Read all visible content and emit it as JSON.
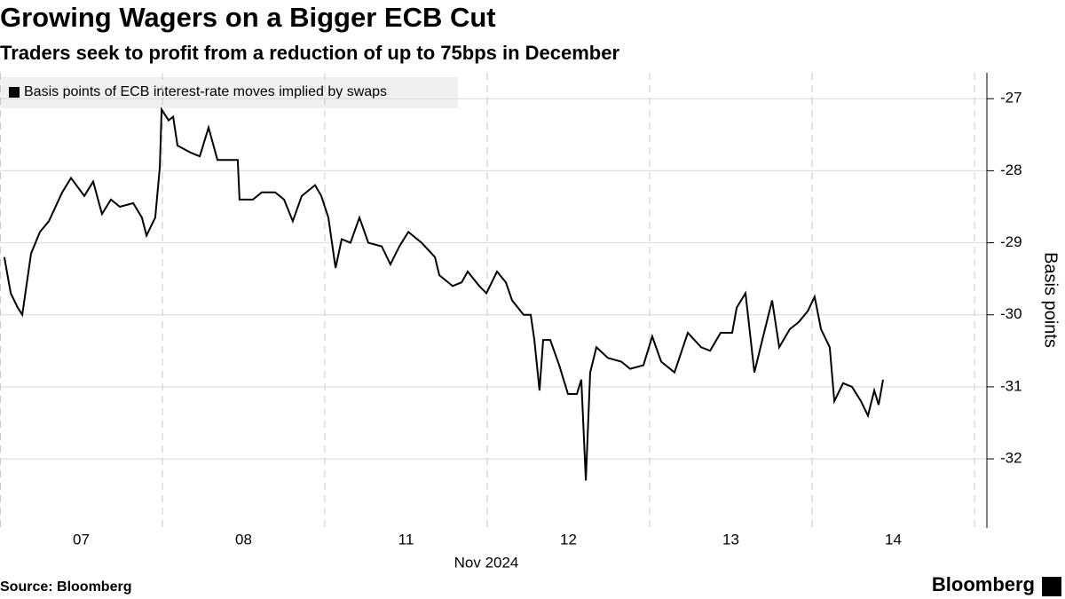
{
  "chart_data": {
    "type": "line",
    "title": "Growing Wagers on a Bigger ECB Cut",
    "subtitle": "Traders seek to profit from a reduction of up to 75bps in December",
    "x_label": "Nov 2024",
    "y_label": "Basis points",
    "source": "Source: Bloomberg",
    "brand": "Bloomberg",
    "xlim": [
      0,
      6.08
    ],
    "xticks": [
      {
        "value": 0.5,
        "label": "07"
      },
      {
        "value": 1.5,
        "label": "08"
      },
      {
        "value": 2.5,
        "label": "11"
      },
      {
        "value": 3.5,
        "label": "12"
      },
      {
        "value": 4.5,
        "label": "13"
      },
      {
        "value": 5.5,
        "label": "14"
      }
    ],
    "x_dividers": [
      0,
      1,
      2,
      3,
      4,
      5,
      6
    ],
    "ylim": [
      -32.96,
      -26.64
    ],
    "yticks": [
      -27,
      -28,
      -29,
      -30,
      -31,
      -32
    ],
    "grid": true,
    "series": [
      {
        "name": "Basis points of ECB interest-rate moves implied by swaps",
        "color": "#000000",
        "x": [
          0.027,
          0.066,
          0.109,
          0.137,
          0.191,
          0.246,
          0.301,
          0.383,
          0.437,
          0.519,
          0.574,
          0.628,
          0.683,
          0.738,
          0.82,
          0.874,
          0.902,
          0.956,
          0.984,
          0.995,
          1.038,
          1.066,
          1.093,
          1.175,
          1.23,
          1.284,
          1.339,
          1.421,
          1.464,
          1.475,
          1.557,
          1.612,
          1.694,
          1.749,
          1.803,
          1.858,
          1.94,
          1.978,
          2.022,
          2.066,
          2.104,
          2.158,
          2.213,
          2.268,
          2.35,
          2.404,
          2.459,
          2.514,
          2.596,
          2.678,
          2.705,
          2.787,
          2.842,
          2.88,
          2.951,
          2.995,
          3.06,
          3.115,
          3.153,
          3.224,
          3.268,
          3.29,
          3.322,
          3.344,
          3.388,
          3.443,
          3.497,
          3.552,
          3.579,
          3.607,
          3.634,
          3.672,
          3.743,
          3.825,
          3.88,
          3.962,
          4.016,
          4.071,
          4.153,
          4.235,
          4.317,
          4.372,
          4.437,
          4.508,
          4.536,
          4.59,
          4.645,
          4.699,
          4.754,
          4.798,
          4.863,
          4.918,
          4.973,
          5.016,
          5.055,
          5.109,
          5.137,
          5.191,
          5.246,
          5.301,
          5.344,
          5.383,
          5.41,
          5.437
        ],
        "values": [
          -29.2,
          -29.7,
          -29.9,
          -30.0,
          -29.15,
          -28.85,
          -28.7,
          -28.3,
          -28.1,
          -28.35,
          -28.15,
          -28.6,
          -28.4,
          -28.5,
          -28.45,
          -28.65,
          -28.9,
          -28.65,
          -27.95,
          -27.15,
          -27.3,
          -27.25,
          -27.65,
          -27.75,
          -27.8,
          -27.4,
          -27.85,
          -27.85,
          -27.85,
          -28.4,
          -28.4,
          -28.3,
          -28.3,
          -28.4,
          -28.7,
          -28.35,
          -28.2,
          -28.35,
          -28.65,
          -29.35,
          -28.95,
          -29.0,
          -28.65,
          -29.0,
          -29.05,
          -29.3,
          -29.05,
          -28.85,
          -29.0,
          -29.2,
          -29.45,
          -29.6,
          -29.55,
          -29.4,
          -29.6,
          -29.7,
          -29.4,
          -29.55,
          -29.8,
          -30.0,
          -30.0,
          -30.35,
          -31.05,
          -30.35,
          -30.35,
          -30.7,
          -31.1,
          -31.1,
          -30.9,
          -32.3,
          -30.8,
          -30.45,
          -30.6,
          -30.65,
          -30.75,
          -30.7,
          -30.3,
          -30.65,
          -30.8,
          -30.25,
          -30.45,
          -30.5,
          -30.25,
          -30.25,
          -29.9,
          -29.7,
          -30.8,
          -30.3,
          -29.8,
          -30.45,
          -30.2,
          -30.1,
          -29.95,
          -29.75,
          -30.2,
          -30.45,
          -31.2,
          -30.95,
          -31.0,
          -31.2,
          -31.4,
          -31.05,
          -31.25,
          -30.9
        ]
      }
    ]
  }
}
